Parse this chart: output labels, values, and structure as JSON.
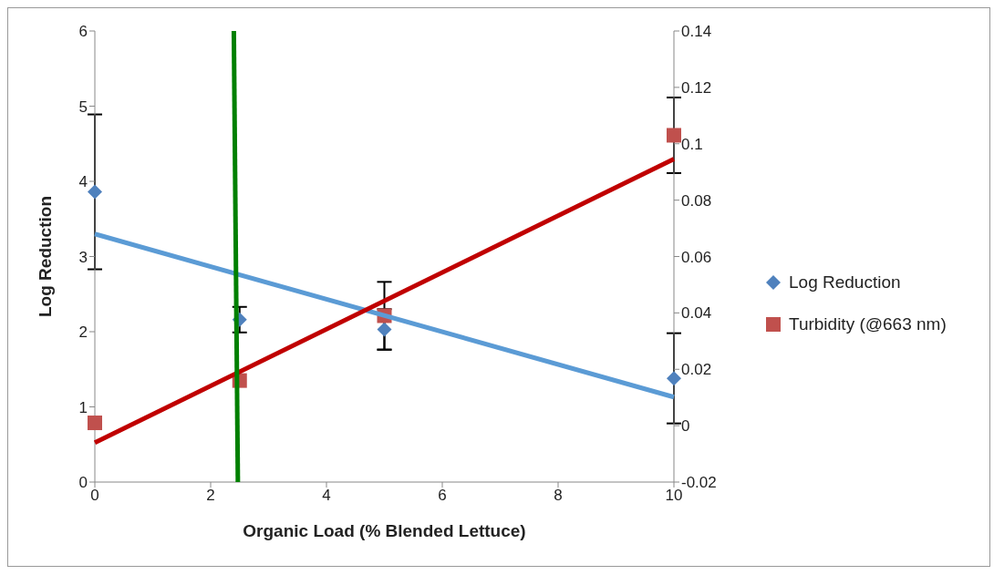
{
  "chart_data": {
    "type": "scatter",
    "xlabel": "Organic Load (% Blended Lettuce)",
    "ylabel": "Log Reduction",
    "xlim": [
      0,
      10
    ],
    "xticks": [
      0,
      2,
      4,
      6,
      8,
      10
    ],
    "ylim": [
      0,
      6
    ],
    "yticks": [
      0,
      1,
      2,
      3,
      4,
      5,
      6
    ],
    "y2lim": [
      -0.02,
      0.14
    ],
    "y2ticks": [
      -0.02,
      0,
      0.02,
      0.04,
      0.06,
      0.08,
      0.1,
      0.12,
      0.14
    ],
    "legend": "right",
    "series": [
      {
        "name": "Log Reduction",
        "marker": "diamond",
        "color": "#4f81bd",
        "x": [
          0,
          2.5,
          5,
          10
        ],
        "values": [
          3.86,
          2.16,
          2.03,
          1.38
        ],
        "errors": [
          1.03,
          0.17,
          0.27,
          0.6
        ]
      },
      {
        "name": "Turbidity (@663 nm)",
        "marker": "square",
        "axis": "y2",
        "color": "#c0504d",
        "x": [
          0,
          2.5,
          5,
          10
        ],
        "values": [
          0.001,
          0.016,
          0.039,
          0.103
        ],
        "errors": [
          null,
          null,
          0.012,
          0.0134
        ]
      },
      {
        "type": "line",
        "marker": "none",
        "color": "#5b9bd5",
        "x": [
          0,
          10
        ],
        "values": [
          3.3,
          1.13
        ]
      },
      {
        "type": "line",
        "marker": "none",
        "axis": "y2",
        "color": "#c00000",
        "x": [
          0,
          10
        ],
        "values": [
          -0.006,
          0.0946
        ]
      },
      {
        "type": "line",
        "marker": "none",
        "color": "#008000",
        "x": [
          2.4,
          2.47
        ],
        "values": [
          6,
          0
        ]
      }
    ]
  }
}
